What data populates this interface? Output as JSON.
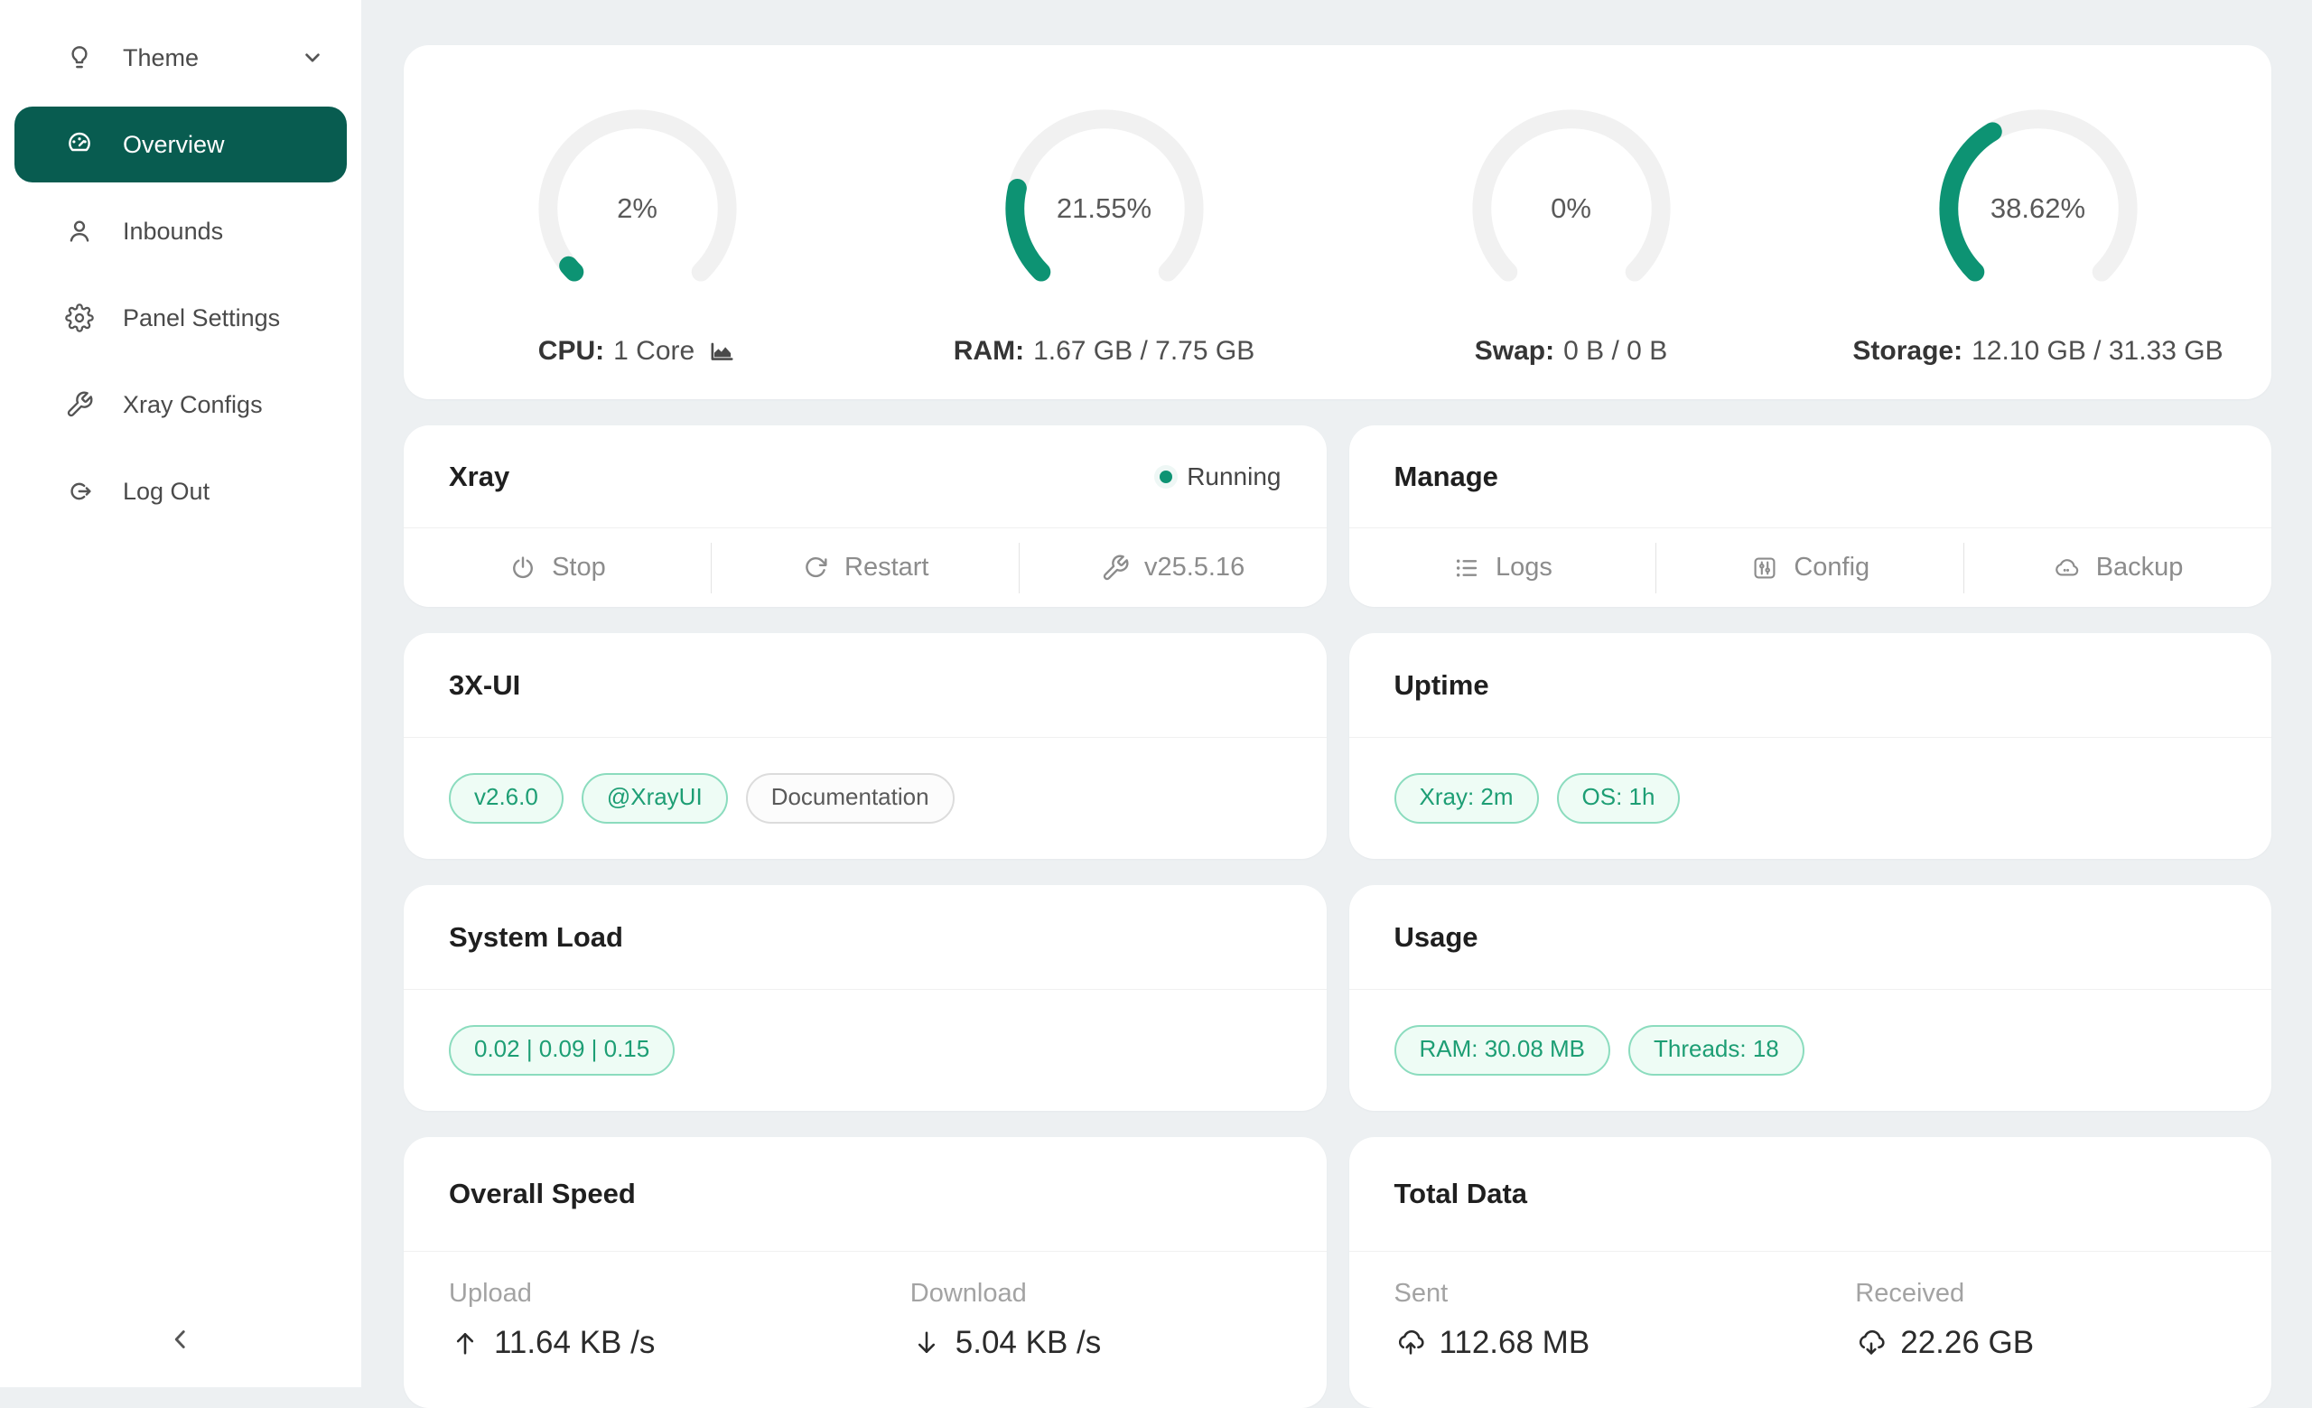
{
  "colors": {
    "accent": "#0d9373",
    "sidebar_active_bg": "#085c50",
    "status_running_dot": "#0d9373",
    "badge_green_text": "#1d9e74",
    "content_bg": "#edf0f2"
  },
  "sidebar": {
    "items": [
      {
        "label": "Theme",
        "icon": "lightbulb-icon",
        "has_chevron": true,
        "active": false
      },
      {
        "label": "Overview",
        "icon": "gauge-icon",
        "active": true
      },
      {
        "label": "Inbounds",
        "icon": "user-icon",
        "active": false
      },
      {
        "label": "Panel Settings",
        "icon": "gear-icon",
        "active": false
      },
      {
        "label": "Xray Configs",
        "icon": "wrench-icon",
        "active": false
      },
      {
        "label": "Log Out",
        "icon": "logout-icon",
        "active": false
      }
    ],
    "collapse_icon": "chevron-left-icon"
  },
  "gauges": [
    {
      "percent": 2,
      "percent_label": "2%",
      "label_bold": "CPU:",
      "label_rest": "1 Core",
      "has_chart_icon": true
    },
    {
      "percent": 21.55,
      "percent_label": "21.55%",
      "label_bold": "RAM:",
      "label_rest": "1.67 GB / 7.75 GB"
    },
    {
      "percent": 0,
      "percent_label": "0%",
      "label_bold": "Swap:",
      "label_rest": "0 B / 0 B"
    },
    {
      "percent": 38.62,
      "percent_label": "38.62%",
      "label_bold": "Storage:",
      "label_rest": "12.10 GB / 31.33 GB"
    }
  ],
  "xray": {
    "title": "Xray",
    "status": "Running",
    "actions": [
      {
        "label": "Stop",
        "icon": "power-icon"
      },
      {
        "label": "Restart",
        "icon": "restart-icon"
      },
      {
        "label": "v25.5.16",
        "icon": "wrench-icon"
      }
    ]
  },
  "manage": {
    "title": "Manage",
    "actions": [
      {
        "label": "Logs",
        "icon": "list-icon"
      },
      {
        "label": "Config",
        "icon": "sliders-icon"
      },
      {
        "label": "Backup",
        "icon": "cloud-backup-icon"
      }
    ]
  },
  "xui": {
    "title": "3X-UI",
    "badges": [
      {
        "label": "v2.6.0",
        "variant": "green"
      },
      {
        "label": "@XrayUI",
        "variant": "green"
      },
      {
        "label": "Documentation",
        "variant": "gray"
      }
    ]
  },
  "uptime": {
    "title": "Uptime",
    "badges": [
      {
        "label": "Xray: 2m",
        "variant": "green"
      },
      {
        "label": "OS: 1h",
        "variant": "green"
      }
    ]
  },
  "system_load": {
    "title": "System Load",
    "badges": [
      {
        "label": "0.02 | 0.09 | 0.15",
        "variant": "green"
      }
    ]
  },
  "usage": {
    "title": "Usage",
    "badges": [
      {
        "label": "RAM: 30.08 MB",
        "variant": "green"
      },
      {
        "label": "Threads: 18",
        "variant": "green"
      }
    ]
  },
  "overall_speed": {
    "title": "Overall Speed",
    "stats": [
      {
        "label": "Upload",
        "value": "11.64 KB /s",
        "icon": "arrow-up-icon"
      },
      {
        "label": "Download",
        "value": "5.04 KB /s",
        "icon": "arrow-down-icon"
      }
    ]
  },
  "total_data": {
    "title": "Total Data",
    "stats": [
      {
        "label": "Sent",
        "value": "112.68 MB",
        "icon": "cloud-upload-icon"
      },
      {
        "label": "Received",
        "value": "22.26 GB",
        "icon": "cloud-download-icon"
      }
    ]
  }
}
